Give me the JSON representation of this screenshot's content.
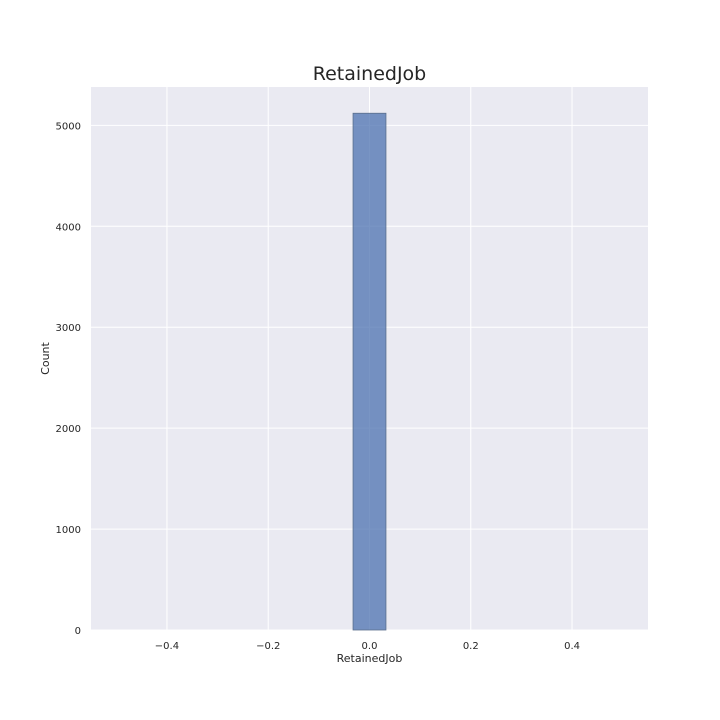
{
  "chart_data": {
    "type": "bar",
    "title": "RetainedJob",
    "xlabel": "RetainedJob",
    "ylabel": "Count",
    "xlim": [
      -0.55,
      0.55
    ],
    "ylim": [
      0,
      5380
    ],
    "xticks": [
      -0.4,
      -0.2,
      0.0,
      0.2,
      0.4
    ],
    "xtick_labels": [
      "−0.4",
      "−0.2",
      "0.0",
      "0.2",
      "0.4"
    ],
    "yticks": [
      0,
      1000,
      2000,
      3000,
      4000,
      5000
    ],
    "ytick_labels": [
      "0",
      "1000",
      "2000",
      "3000",
      "4000",
      "5000"
    ],
    "bins": [
      {
        "x0": -0.0325,
        "x1": 0.0325,
        "value": 5120
      }
    ],
    "grid": true,
    "colors": {
      "background": "#eaeaf2",
      "grid": "#ffffff",
      "bar": "#4c72b0",
      "bar_opacity": 0.75
    }
  }
}
